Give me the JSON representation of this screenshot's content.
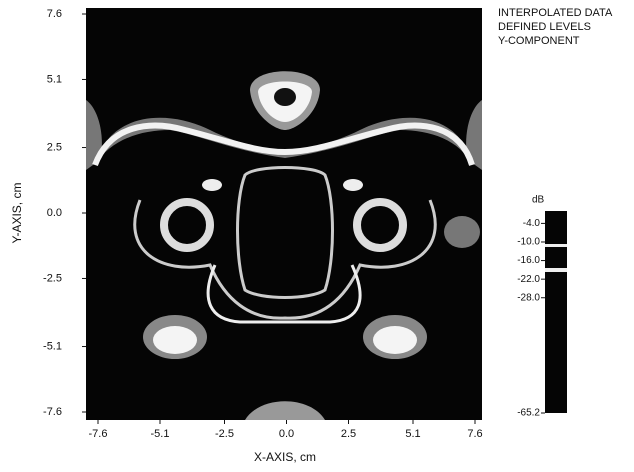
{
  "chart_data": {
    "type": "contour",
    "title_lines": [
      "INTERPOLATED DATA",
      "DEFINED LEVELS",
      "Y-COMPONENT"
    ],
    "x_label": "X-AXIS, cm",
    "y_label": "Y-AXIS, cm",
    "xlim": [
      -7.6,
      7.6
    ],
    "ylim": [
      -7.6,
      7.6
    ],
    "xticks": [
      -7.6,
      -5.1,
      -2.5,
      {
        "value": 0,
        "label": "0.0"
      },
      2.5,
      5.1,
      7.6
    ],
    "yticks": [
      -7.6,
      -5.1,
      -2.5,
      {
        "value": 0,
        "label": "0.0"
      },
      2.5,
      5.1,
      7.6
    ],
    "colorbar": {
      "label": "dB",
      "clim": [
        -65.2,
        0
      ],
      "ticks": [
        {
          "value": -4,
          "label": "-4.0"
        },
        {
          "value": -10,
          "label": "-10.0"
        },
        {
          "value": -16,
          "label": "-16.0"
        },
        {
          "value": -22,
          "label": "-22.0"
        },
        {
          "value": -28,
          "label": "-28.0"
        },
        -65.2
      ]
    }
  }
}
